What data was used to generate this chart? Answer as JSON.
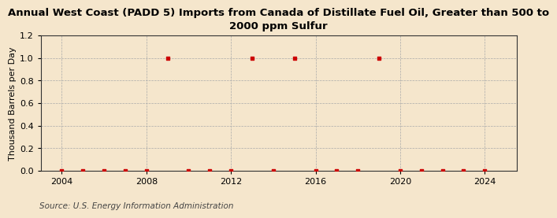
{
  "title": "Annual West Coast (PADD 5) Imports from Canada of Distillate Fuel Oil, Greater than 500 to\n2000 ppm Sulfur",
  "ylabel": "Thousand Barrels per Day",
  "source": "Source: U.S. Energy Information Administration",
  "background_color": "#f5e6cc",
  "plot_background_color": "#f5e6cc",
  "xlim": [
    2003,
    2025.5
  ],
  "ylim": [
    0.0,
    1.2
  ],
  "yticks": [
    0.0,
    0.2,
    0.4,
    0.6,
    0.8,
    1.0,
    1.2
  ],
  "xticks": [
    2004,
    2008,
    2012,
    2016,
    2020,
    2024
  ],
  "years": [
    2004,
    2005,
    2006,
    2007,
    2008,
    2009,
    2010,
    2011,
    2012,
    2013,
    2014,
    2015,
    2016,
    2017,
    2018,
    2019,
    2020,
    2021,
    2022,
    2023,
    2024
  ],
  "values": [
    0.0,
    0.0,
    0.0,
    0.0,
    0.0,
    1.0,
    0.0,
    0.0,
    0.0,
    1.0,
    0.0,
    1.0,
    0.0,
    0.0,
    0.0,
    1.0,
    0.0,
    0.0,
    0.0,
    0.0,
    0.0
  ],
  "marker_color": "#cc0000",
  "grid_color": "#aaaaaa",
  "title_fontsize": 9.5,
  "label_fontsize": 8.0,
  "tick_fontsize": 8.0,
  "source_fontsize": 7.5
}
